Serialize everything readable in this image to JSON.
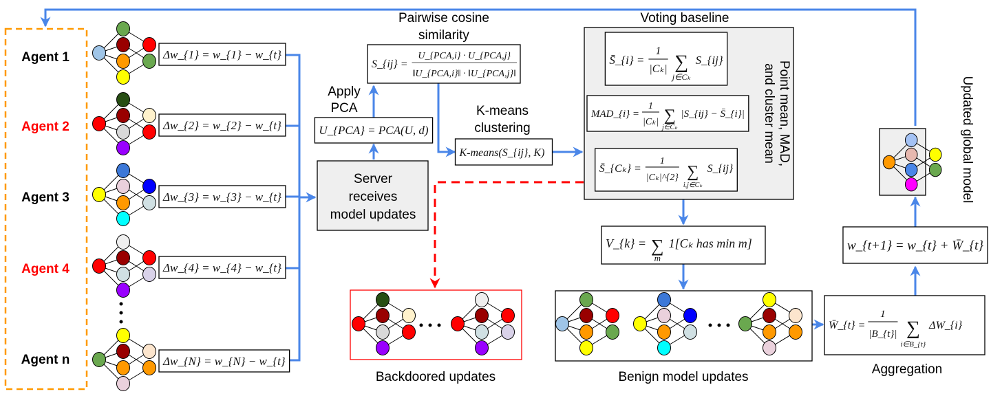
{
  "colors": {
    "flow": "#4a86e8",
    "malicious": "#ff0000",
    "agent_frame": "#ff9900",
    "panel": "#efefef"
  },
  "agents": [
    {
      "label": "Agent 1",
      "color": "#000000",
      "update": "Δw_{1} = w_{1} − w_{t}"
    },
    {
      "label": "Agent 2",
      "color": "#ff0000",
      "update": "Δw_{2} = w_{2} − w_{t}"
    },
    {
      "label": "Agent 3",
      "color": "#000000",
      "update": "Δw_{3} = w_{3} − w_{t}"
    },
    {
      "label": "Agent 4",
      "color": "#ff0000",
      "update": "Δw_{4} = w_{4} − w_{t}"
    },
    {
      "label": "Agent n",
      "color": "#000000",
      "update": "Δw_{N} = w_{N} − w_{t}"
    }
  ],
  "server": {
    "line1": "Server",
    "line2": "receives",
    "line3": "model updates"
  },
  "pca": {
    "label1": "Apply",
    "label2": "PCA",
    "formula": "U_{PCA} = PCA(U, d)"
  },
  "cosine": {
    "title1": "Pairwise cosine",
    "title2": "similarity",
    "lhs": "S_{ij} =",
    "num": "U_{PCA,i} · U_{PCA,j}",
    "den": "‖U_{PCA,i}‖ · ‖U_{PCA,j}‖"
  },
  "kmeans": {
    "label1": "K-means",
    "label2": "clustering",
    "formula": "K-means(S_{ij}, K)"
  },
  "voting": {
    "title": "Voting baseline",
    "side_label1": "Point mean, MAD,",
    "side_label2": "and cluster mean",
    "point_mean": {
      "lhs": "S̄_{i} =",
      "num": "1",
      "den": "|Cₖ|",
      "sum": "∑",
      "sub": "j∈Cₖ",
      "term": "S_{ij}"
    },
    "mad": {
      "lhs": "MAD_{i} =",
      "num": "1",
      "den": "|Cₖ|",
      "sum": "∑",
      "sub": "j∈Cₖ",
      "term": "|S_{ij} − S̄_{i}|"
    },
    "cluster_mean": {
      "lhs": "S̄_{Cₖ} =",
      "num": "1",
      "den": "|Cₖ|^{2}",
      "sum": "∑",
      "sub": "i,j∈Cₖ",
      "term": "S_{ij}"
    }
  },
  "vote": {
    "lhs": "V_{k} =",
    "sum": "∑",
    "sub": "m",
    "term": "1[Cₖ has min m]"
  },
  "backdoored": {
    "label": "Backdoored updates"
  },
  "benign": {
    "label": "Benign model updates"
  },
  "aggregation": {
    "label": "Aggregation",
    "lhs": "W̄_{t} =",
    "num": "1",
    "den": "|B_{t}|",
    "sum": "∑",
    "sub": "i∈B_{t}",
    "term": "ΔW_{i}"
  },
  "update_rule": {
    "formula": "w_{t+1} = w_{t} + W̄_{t}"
  },
  "global_model": {
    "label": "Updated global model"
  },
  "networks": {
    "agent_1": [
      "#6aa84f",
      "#990000",
      "#ff9900",
      "#ffff00",
      "#9fc5e8",
      "#ff0000",
      "#6aa84f"
    ],
    "agent_2": [
      "#274e13",
      "#990000",
      "#d9d9d9",
      "#9900ff",
      "#ff0000",
      "#fff2cc",
      "#ff0000"
    ],
    "agent_3": [
      "#3c78d8",
      "#ead1dc",
      "#ff9900",
      "#00ffff",
      "#ffff00",
      "#0000ff",
      "#d0e0e3"
    ],
    "agent_4": [
      "#efefef",
      "#990000",
      "#d0e0e3",
      "#9900ff",
      "#ff0000",
      "#ff0000",
      "#d9d2e9"
    ],
    "agent_n": [
      "#ffff00",
      "#990000",
      "#ff9900",
      "#ead1dc",
      "#6aa84f",
      "#fce5cd",
      "#ff9900"
    ],
    "backdoored_1": [
      "#274e13",
      "#990000",
      "#d9d9d9",
      "#9900ff",
      "#ff0000",
      "#fff2cc",
      "#ff0000"
    ],
    "backdoored_2": [
      "#efefef",
      "#990000",
      "#d0e0e3",
      "#9900ff",
      "#ff0000",
      "#ff0000",
      "#d9d2e9"
    ],
    "benign_1": [
      "#6aa84f",
      "#990000",
      "#ff9900",
      "#ffff00",
      "#9fc5e8",
      "#ff0000",
      "#6aa84f"
    ],
    "benign_2": [
      "#3c78d8",
      "#ead1dc",
      "#ff9900",
      "#00ffff",
      "#ffff00",
      "#0000ff",
      "#d0e0e3"
    ],
    "benign_3": [
      "#ffff00",
      "#990000",
      "#ff9900",
      "#ead1dc",
      "#6aa84f",
      "#fce5cd",
      "#ff9900"
    ],
    "global": [
      "#a4c2f4",
      "#e6b8af",
      "#4a86e8",
      "#ff00ff",
      "#ff9900",
      "#ffff00",
      "#6aa84f"
    ]
  }
}
